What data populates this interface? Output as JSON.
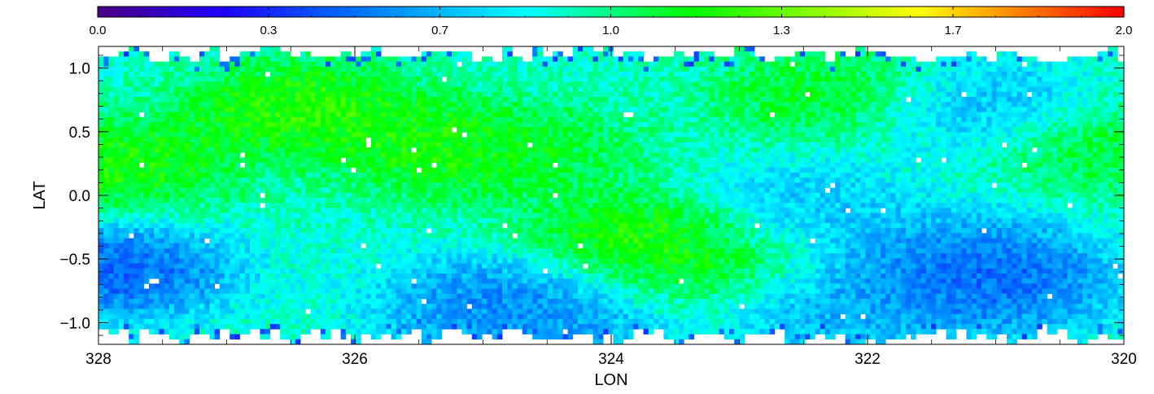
{
  "chart_data": {
    "type": "heatmap",
    "title": "",
    "xlabel": "LON",
    "ylabel": "LAT",
    "xlim": [
      328,
      320
    ],
    "ylim": [
      -1.17,
      1.17
    ],
    "x_ticks": [
      "328",
      "326",
      "324",
      "322",
      "320"
    ],
    "y_ticks": [
      "1.0",
      "0.5",
      "0.0",
      "−0.5",
      "−1.0"
    ],
    "x_tick_values": [
      328,
      326,
      324,
      322,
      320
    ],
    "y_tick_values": [
      1.0,
      0.5,
      0.0,
      -0.5,
      -1.0
    ],
    "colorbar": {
      "range": [
        0,
        2
      ],
      "colormap": "rainbow",
      "ticks": [
        "0.0",
        "0.3",
        "0.7",
        "1.0",
        "1.3",
        "1.7",
        "2.0"
      ],
      "tick_values": [
        0.0,
        0.333,
        0.667,
        1.0,
        1.333,
        1.667,
        2.0
      ]
    },
    "data_extent": {
      "lon": [
        328,
        320
      ],
      "lat": [
        -1.12,
        1.12
      ]
    },
    "features": [
      {
        "lon": 326.4,
        "lat": 0.68,
        "value": 1.35
      },
      {
        "lon": 325.3,
        "lat": 0.38,
        "value": 1.3
      },
      {
        "lon": 323.7,
        "lat": -0.35,
        "value": 1.35
      },
      {
        "lon": 327.8,
        "lat": 0.25,
        "value": 1.3
      },
      {
        "lon": 322.3,
        "lat": 0.8,
        "value": 1.2
      },
      {
        "lon": 320.1,
        "lat": 0.4,
        "value": 1.2
      },
      {
        "lon": 324.6,
        "lat": 0.3,
        "value": 1.15
      },
      {
        "lon": 323.4,
        "lat": -0.6,
        "value": 1.15
      },
      {
        "lon": 321.0,
        "lat": -0.7,
        "value": 0.35
      },
      {
        "lon": 321.3,
        "lat": -0.5,
        "value": 0.45
      },
      {
        "lon": 324.9,
        "lat": -0.85,
        "value": 0.45
      },
      {
        "lon": 322.2,
        "lat": -0.9,
        "value": 0.55
      },
      {
        "lon": 327.9,
        "lat": -0.6,
        "value": 0.3
      },
      {
        "lon": 321.1,
        "lat": 0.7,
        "value": 0.6
      },
      {
        "lon": 322.5,
        "lat": -0.1,
        "value": 0.65
      },
      {
        "lon": 324.4,
        "lat": -0.95,
        "value": 0.55
      }
    ],
    "background_value": 0.9
  },
  "colors": {
    "colormap_stops": [
      "#4b0082",
      "#1e00ff",
      "#0070ff",
      "#00ffff",
      "#00ff00",
      "#ffff00",
      "#ff8000",
      "#ff0000"
    ]
  }
}
